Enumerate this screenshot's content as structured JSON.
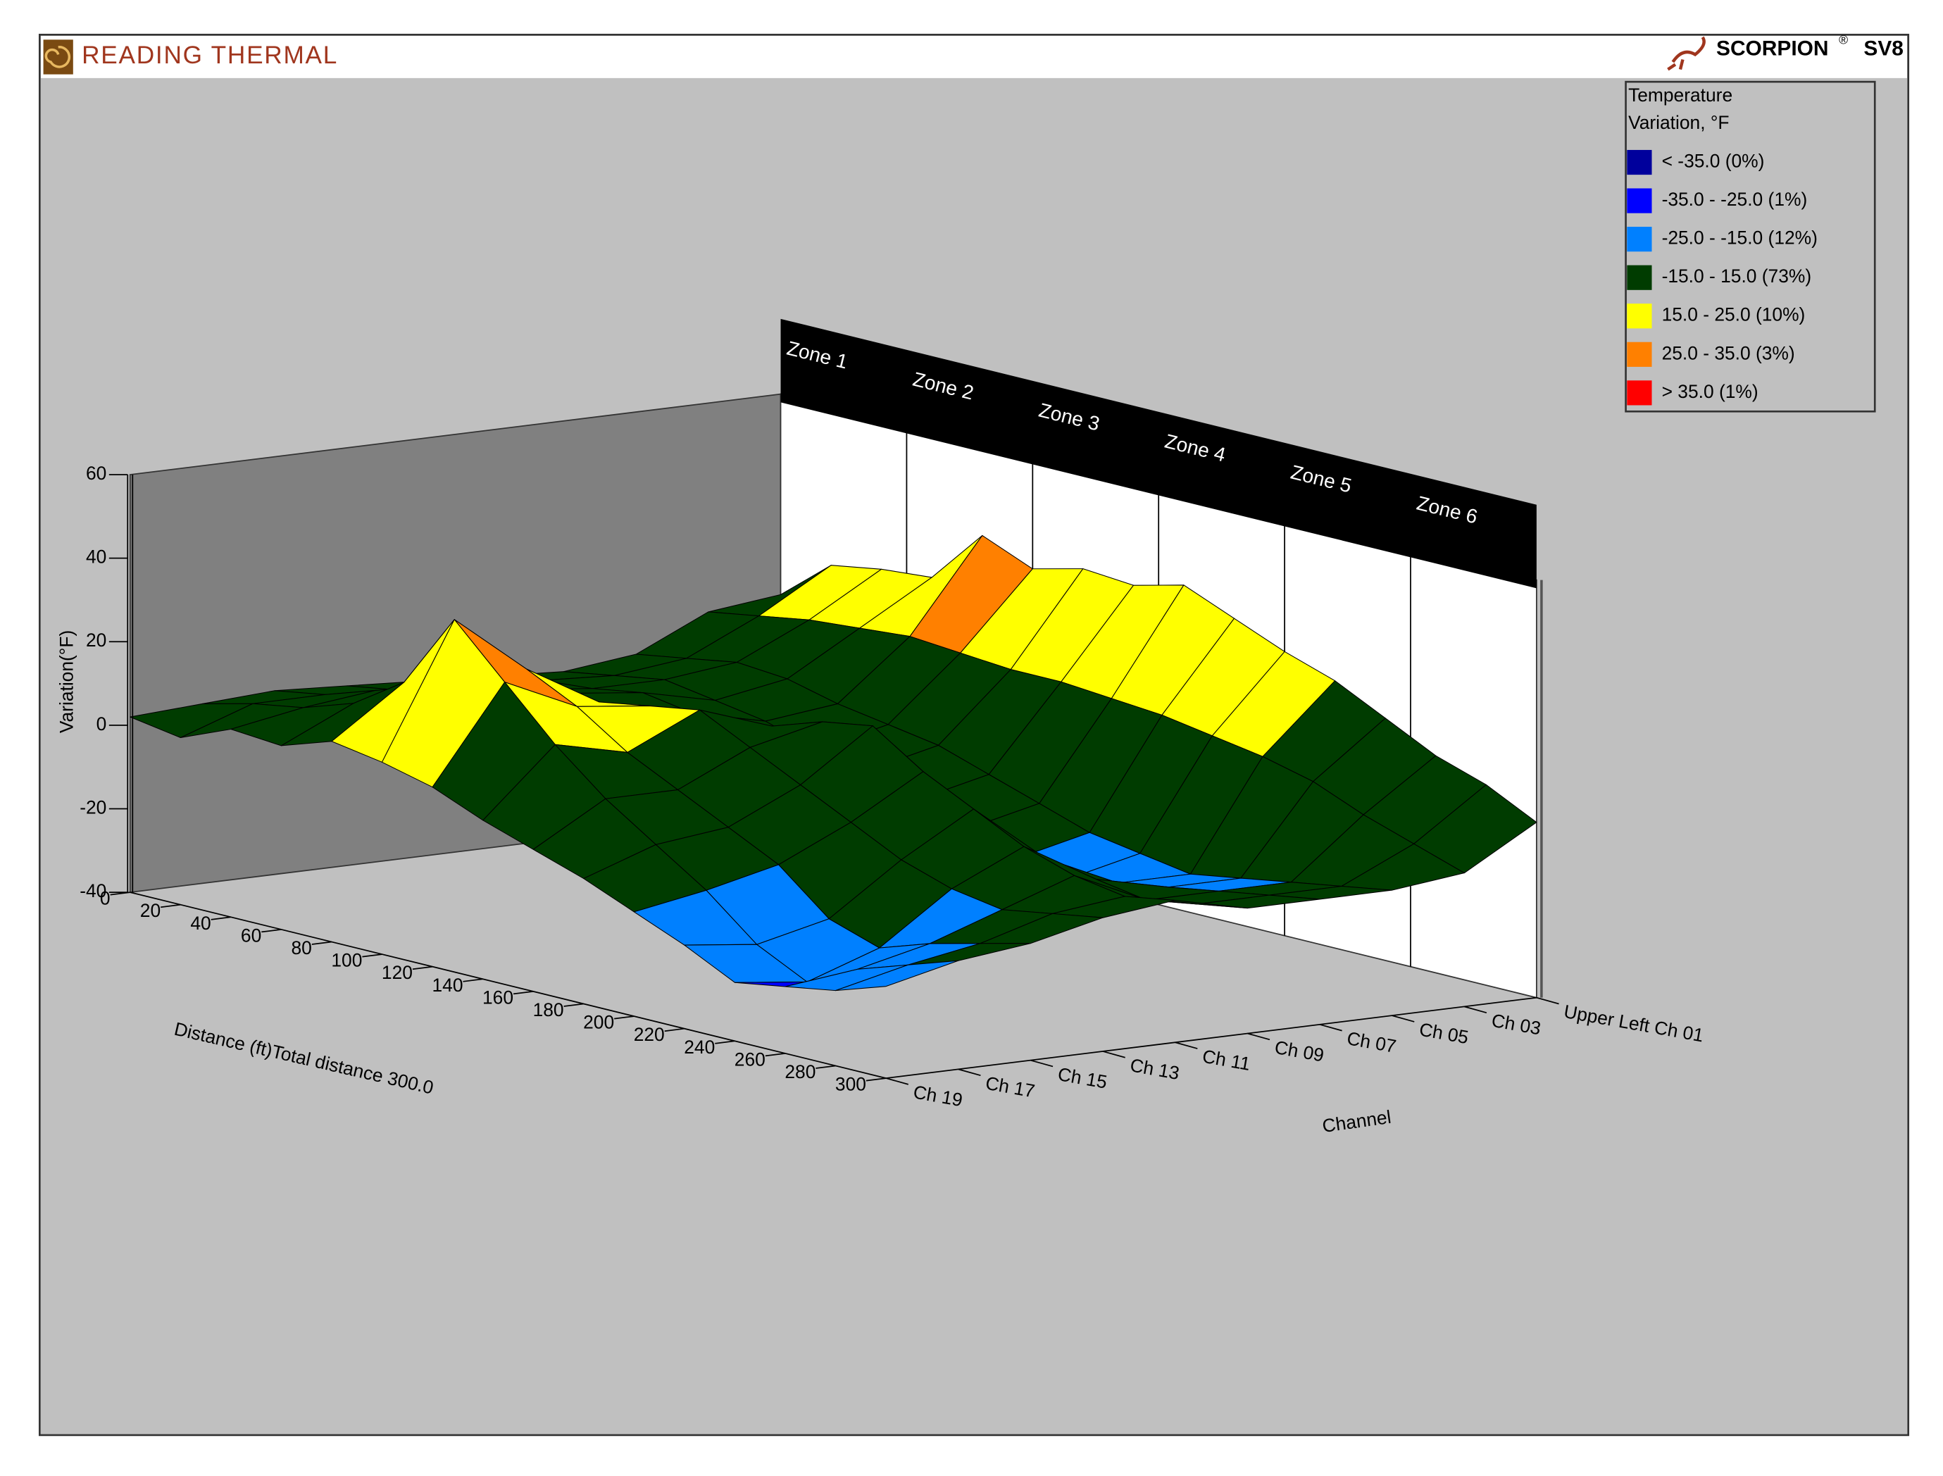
{
  "header": {
    "brand": "READING THERMAL",
    "product": "SCORPION",
    "registered": "®",
    "model": "SV8"
  },
  "chart_data": {
    "type": "surface3d",
    "y_label": "Variation(°F)",
    "x_label": "Distance (ft)Total distance 300.0",
    "z_label": "Channel",
    "xlim": [
      0,
      300
    ],
    "xticks": [
      0,
      20,
      40,
      60,
      80,
      100,
      120,
      140,
      160,
      180,
      200,
      220,
      240,
      260,
      280,
      300
    ],
    "ylim": [
      -40,
      60
    ],
    "yticks": [
      -40,
      -20,
      0,
      20,
      40,
      60
    ],
    "zones": [
      "Zone 1",
      "Zone 2",
      "Zone 3",
      "Zone 4",
      "Zone 5",
      "Zone 6"
    ],
    "x": [
      0,
      20,
      40,
      60,
      80,
      100,
      120,
      140,
      160,
      180,
      200,
      220,
      240,
      260,
      280,
      300
    ],
    "series": [
      {
        "name": "Ch 19",
        "values": [
          2,
          0,
          5,
          4,
          8,
          6,
          3,
          -2,
          -6,
          -10,
          -15,
          -20,
          -26,
          -24,
          -22,
          -18
        ]
      },
      {
        "name": "Ch 17",
        "values": [
          3,
          6,
          8,
          12,
          20,
          38,
          26,
          14,
          4,
          -4,
          -12,
          -22,
          -28,
          -22,
          -18,
          -14
        ]
      },
      {
        "name": "Ch 15",
        "values": [
          4,
          6,
          10,
          14,
          18,
          24,
          18,
          10,
          4,
          -2,
          -8,
          -18,
          -22,
          -18,
          -15,
          -12
        ]
      },
      {
        "name": "Ch 13",
        "values": [
          3,
          5,
          8,
          10,
          12,
          14,
          16,
          18,
          12,
          6,
          0,
          -6,
          -10,
          -12,
          -10,
          -8
        ]
      },
      {
        "name": "Ch 11",
        "values": [
          2,
          4,
          6,
          8,
          6,
          8,
          10,
          12,
          16,
          18,
          10,
          4,
          -2,
          -6,
          -8,
          -6
        ]
      },
      {
        "name": "Ch 09",
        "values": [
          1,
          3,
          4,
          6,
          4,
          2,
          0,
          -2,
          -4,
          -6,
          -8,
          -10,
          -12,
          -14,
          -12,
          -10
        ]
      },
      {
        "name": "Ch 07",
        "values": [
          0,
          2,
          4,
          2,
          0,
          -4,
          -6,
          -10,
          -14,
          -18,
          -20,
          -18,
          -16,
          -14,
          -12,
          -10
        ]
      },
      {
        "name": "Ch 05",
        "values": [
          2,
          4,
          6,
          5,
          2,
          0,
          -2,
          -6,
          -10,
          -14,
          -16,
          -18,
          -16,
          -14,
          -12,
          -10
        ]
      },
      {
        "name": "Ch 03",
        "values": [
          10,
          12,
          14,
          15,
          16,
          15,
          14,
          14,
          13,
          12,
          10,
          8,
          5,
          0,
          -4,
          -8
        ]
      },
      {
        "name": "Upper Left Ch 01",
        "values": [
          12,
          22,
          24,
          25,
          38,
          33,
          36,
          35,
          38,
          33,
          28,
          24,
          18,
          12,
          8,
          2
        ]
      }
    ],
    "levels": [
      -35,
      -25,
      -15,
      15,
      25,
      35
    ],
    "legend": {
      "title": [
        "Temperature",
        "Variation, °F"
      ],
      "items": [
        {
          "name": "< -35.0 (0%)",
          "color": "#00009c"
        },
        {
          "name": "-35.0 - -25.0 (1%)",
          "color": "#0000ff"
        },
        {
          "name": "-25.0 - -15.0 (12%)",
          "color": "#0080ff"
        },
        {
          "name": "-15.0 - 15.0 (73%)",
          "color": "#003c00"
        },
        {
          "name": "15.0 - 25.0 (10%)",
          "color": "#ffff00"
        },
        {
          "name": "25.0 - 35.0 (3%)",
          "color": "#ff8000"
        },
        {
          "name": "> 35.0 (1%)",
          "color": "#ff0000"
        }
      ]
    }
  }
}
